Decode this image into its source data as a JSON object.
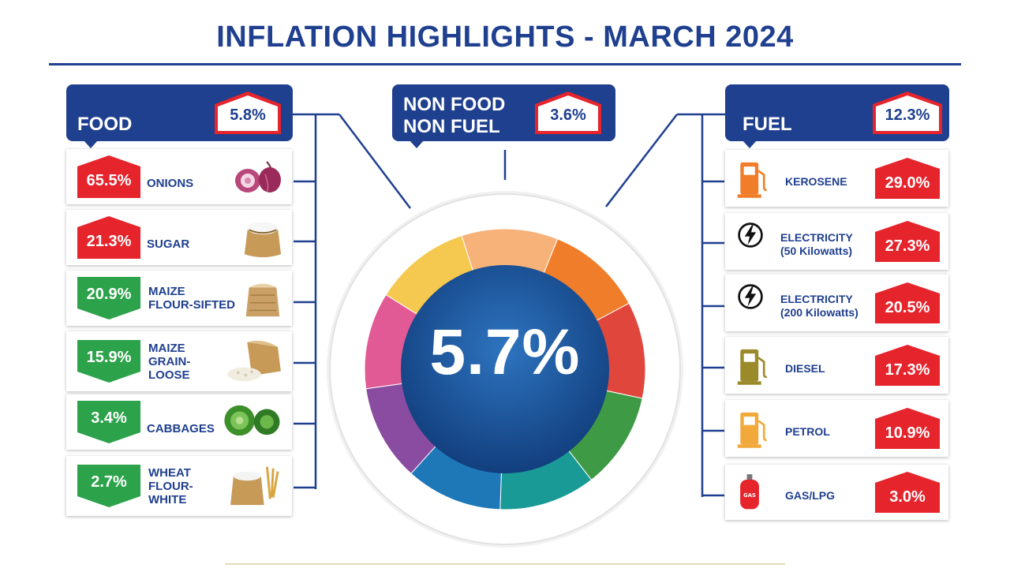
{
  "title": "INFLATION HIGHLIGHTS - MARCH 2024",
  "overall": {
    "value": "5.7%"
  },
  "colors": {
    "brand": "#1f3f8f",
    "increase": "#e5242c",
    "decrease": "#2ca24a",
    "donut_center": "#1c5aa0",
    "donut_segments": [
      "#f5c84f",
      "#f7b27a",
      "#f07d2a",
      "#e0463b",
      "#3e9a44",
      "#1a9a96",
      "#1e78b8",
      "#8a4ca0",
      "#e25a95"
    ]
  },
  "food": {
    "label": "FOOD",
    "value": "5.8%",
    "items": [
      {
        "name": "ONIONS",
        "value": "65.5%",
        "direction": "up",
        "icon": "onion-icon"
      },
      {
        "name": "SUGAR",
        "value": "21.3%",
        "direction": "up",
        "icon": "sugar-sack-icon"
      },
      {
        "name": "MAIZE\nFLOUR-SIFTED",
        "value": "20.9%",
        "direction": "down",
        "icon": "flour-sack-icon"
      },
      {
        "name": "MAIZE\nGRAIN-\nLOOSE",
        "value": "15.9%",
        "direction": "down",
        "icon": "grain-sack-icon"
      },
      {
        "name": "CABBAGES",
        "value": "3.4%",
        "direction": "down",
        "icon": "cabbage-icon"
      },
      {
        "name": "WHEAT\nFLOUR-\nWHITE",
        "value": "2.7%",
        "direction": "down",
        "icon": "wheat-sack-icon"
      }
    ]
  },
  "non_food": {
    "label": "NON FOOD\nNON FUEL",
    "value": "3.6%"
  },
  "fuel": {
    "label": "FUEL",
    "value": "12.3%",
    "items": [
      {
        "name": "KEROSENE",
        "value": "29.0%",
        "icon": "fuel-pump-icon",
        "icon_color": "#f07d2a"
      },
      {
        "name": "ELECTRICITY\n(50 Kilowatts)",
        "value": "27.3%",
        "icon": "lightning-icon",
        "icon_color": "#111111"
      },
      {
        "name": "ELECTRICITY\n(200 Kilowatts)",
        "value": "20.5%",
        "icon": "lightning-icon",
        "icon_color": "#111111"
      },
      {
        "name": "DIESEL",
        "value": "17.3%",
        "icon": "fuel-pump-icon",
        "icon_color": "#9a8a2a"
      },
      {
        "name": "PETROL",
        "value": "10.9%",
        "icon": "fuel-pump-icon",
        "icon_color": "#f2a93b"
      },
      {
        "name": "GAS/LPG",
        "value": "3.0%",
        "icon": "gas-cylinder-icon",
        "icon_color": "#e5242c"
      }
    ]
  }
}
